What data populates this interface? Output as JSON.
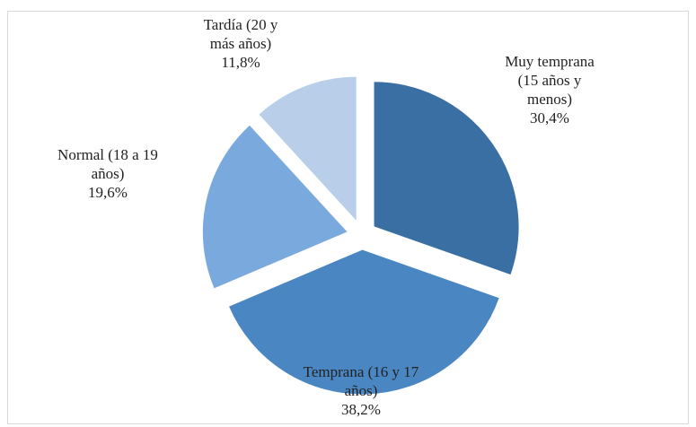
{
  "chart_data": {
    "type": "pie",
    "categories": [
      "Muy temprana (15 años y menos)",
      "Temprana (16 y 17 años)",
      "Normal (18 a 19 años)",
      "Tardía (20 y más años)"
    ],
    "values": [
      30.4,
      38.2,
      19.6,
      11.8
    ],
    "value_labels": [
      "30,4%",
      "38,2%",
      "19,6%",
      "11,8%"
    ],
    "colors": [
      "#3a6fa3",
      "#4a86c2",
      "#7aaadd",
      "#b9cfe9"
    ]
  }
}
